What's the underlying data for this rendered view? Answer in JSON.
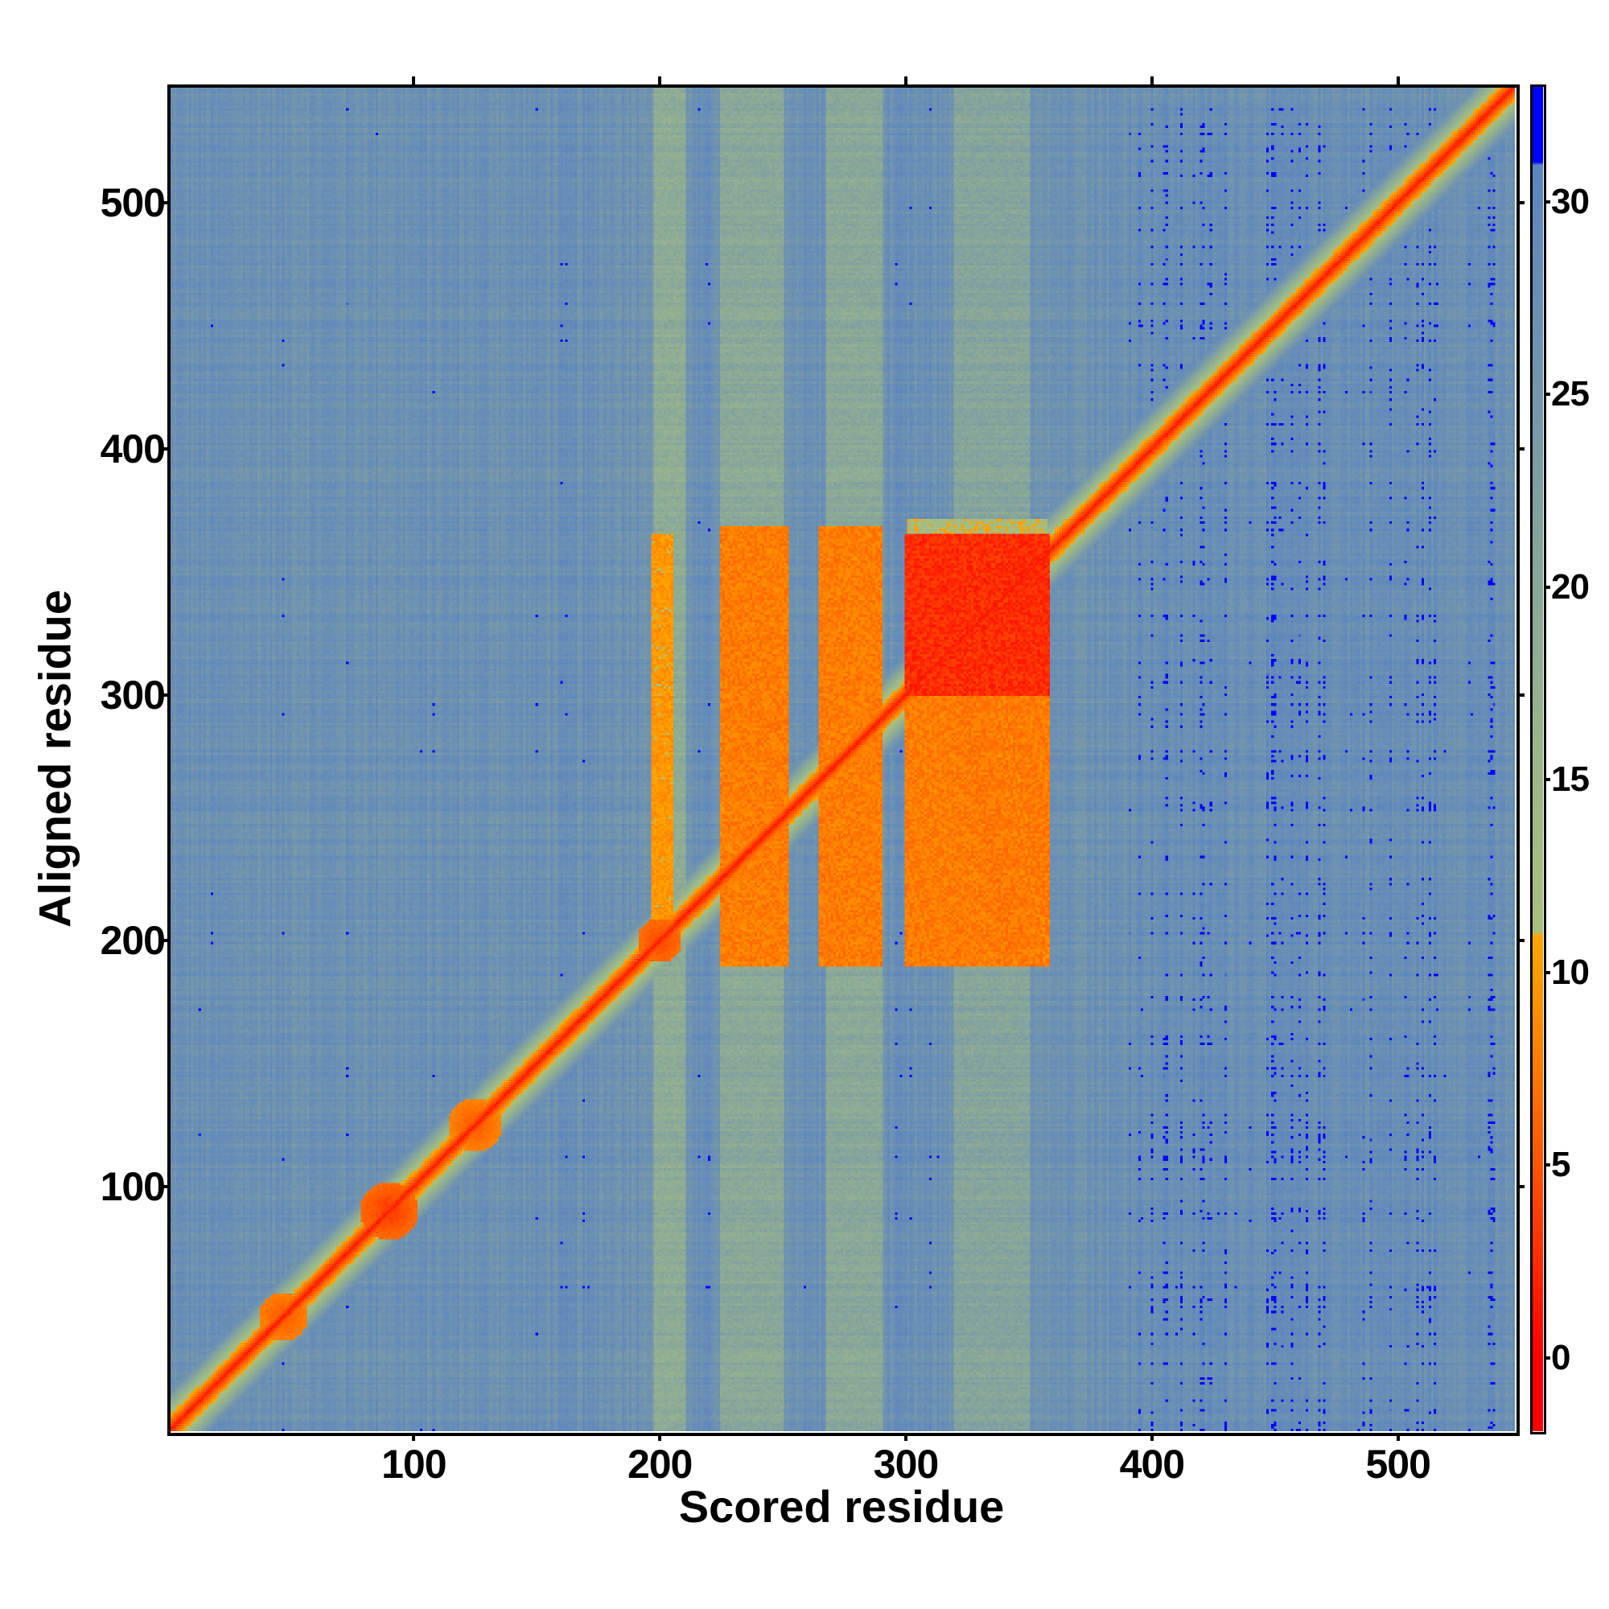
{
  "chart_data": {
    "type": "heatmap",
    "title": "",
    "xlabel": "Scored residue",
    "ylabel": "Aligned residue",
    "n_residues": 547,
    "xlim": [
      1,
      547
    ],
    "ylim": [
      1,
      547
    ],
    "x_ticks": [
      100,
      200,
      300,
      400,
      500
    ],
    "y_ticks": [
      100,
      200,
      300,
      400,
      500
    ],
    "colorbar": {
      "range": [
        -1.9,
        33
      ],
      "ticks": [
        0,
        5,
        10,
        15,
        20,
        25,
        30
      ],
      "stops": [
        [
          0,
          "#ff0000"
        ],
        [
          5,
          "#ff5500"
        ],
        [
          9,
          "#ff9000"
        ],
        [
          11,
          "#ffa800"
        ],
        [
          11.01,
          "#a8c07c"
        ],
        [
          15,
          "#9cb889"
        ],
        [
          20,
          "#8aa898"
        ],
        [
          25,
          "#7496ac"
        ],
        [
          30,
          "#6088bc"
        ],
        [
          31,
          "#5a85c2"
        ],
        [
          31.01,
          "#0000ff"
        ]
      ]
    },
    "background_pae": 27,
    "diagonal_pae": 1.5,
    "diagonal_blobs": [
      {
        "center": 47,
        "radius": 10,
        "pae": 5
      },
      {
        "center": 90,
        "radius": 12,
        "pae": 3
      },
      {
        "center": 125,
        "radius": 11,
        "pae": 5
      },
      {
        "center": 200,
        "radius": 9,
        "pae": 4
      }
    ],
    "light_stripes_columns": [
      [
        198,
        210,
        19
      ],
      [
        225,
        250,
        20
      ],
      [
        268,
        290,
        20
      ],
      [
        320,
        350,
        21
      ]
    ],
    "blocks": [
      {
        "cols": [
          197,
          205
        ],
        "rows": [
          195,
          365
        ],
        "pae": 9
      },
      {
        "cols": [
          225,
          252
        ],
        "rows": [
          190,
          368
        ],
        "pae": 7
      },
      {
        "cols": [
          265,
          290
        ],
        "rows": [
          190,
          368
        ],
        "pae": 7
      },
      {
        "cols": [
          300,
          358
        ],
        "rows": [
          190,
          300
        ],
        "pae": 7
      },
      {
        "cols": [
          300,
          358
        ],
        "rows": [
          300,
          365
        ],
        "pae": 2
      }
    ]
  }
}
